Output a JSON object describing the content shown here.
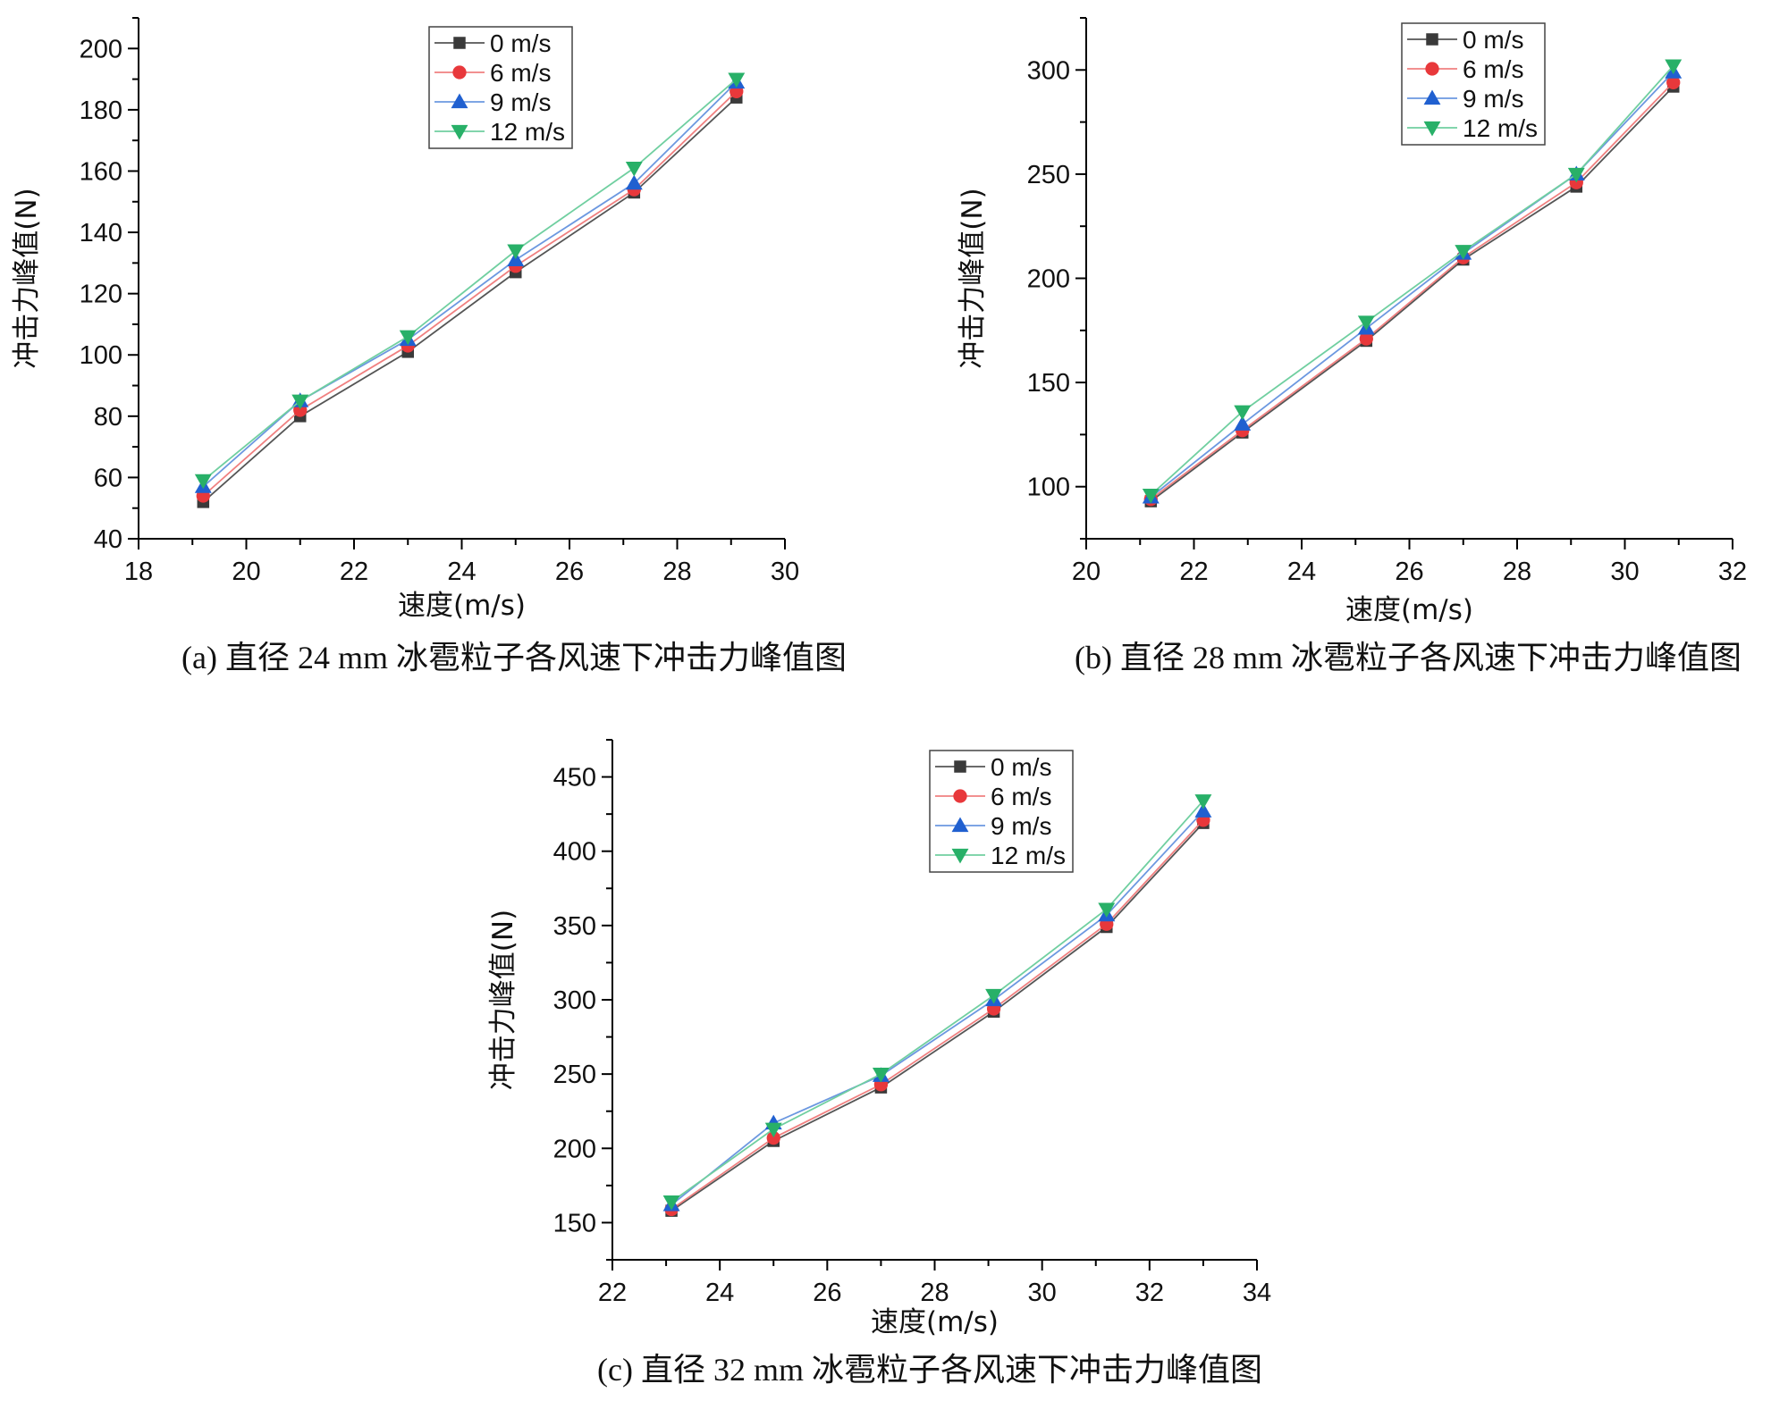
{
  "colors": {
    "0 m/s": "#3a3a3a",
    "6 m/s": "#e8383b",
    "9 m/s": "#2060d0",
    "12 m/s": "#28b068",
    "line_0 m/s": "#555555",
    "line_6 m/s": "#f08080",
    "line_9 m/s": "#6c98e0",
    "line_12 m/s": "#70cfa0"
  },
  "chart_data": [
    {
      "type": "line",
      "caption": "(a)  直径 24 mm 冰雹粒子各风速下冲击力峰值图",
      "xlabel": "速度(m/s)",
      "ylabel": "冲击力峰值(N)",
      "xlim": [
        18,
        30
      ],
      "ylim": [
        40,
        210
      ],
      "xticks": [
        18,
        20,
        22,
        24,
        26,
        28,
        30
      ],
      "yticks": [
        40,
        60,
        80,
        100,
        120,
        140,
        160,
        180,
        200
      ],
      "legend_position": "top-center",
      "x": [
        19.2,
        21.0,
        23.0,
        25.0,
        27.2,
        29.1
      ],
      "series": [
        {
          "name": "0 m/s",
          "marker": "square",
          "values": [
            52,
            80,
            101,
            127,
            153,
            184
          ]
        },
        {
          "name": "6 m/s",
          "marker": "circle",
          "values": [
            54,
            82,
            103,
            129,
            154,
            186
          ]
        },
        {
          "name": "9 m/s",
          "marker": "triangle-up",
          "values": [
            57,
            85,
            105,
            131,
            156,
            189
          ]
        },
        {
          "name": "12 m/s",
          "marker": "triangle-down",
          "values": [
            59,
            85,
            106,
            134,
            161,
            190
          ]
        }
      ]
    },
    {
      "type": "line",
      "caption": "(b)  直径 28 mm 冰雹粒子各风速下冲击力峰值图",
      "xlabel": "速度(m/s)",
      "ylabel": "冲击力峰值(N)",
      "xlim": [
        20,
        32
      ],
      "ylim": [
        75,
        325
      ],
      "xticks": [
        20,
        22,
        24,
        26,
        28,
        30,
        32
      ],
      "yticks": [
        100,
        150,
        200,
        250,
        300
      ],
      "legend_position": "top-center",
      "x": [
        21.2,
        22.9,
        25.2,
        27.0,
        29.1,
        30.9
      ],
      "series": [
        {
          "name": "0 m/s",
          "marker": "square",
          "values": [
            93,
            126,
            170,
            209,
            244,
            292
          ]
        },
        {
          "name": "6 m/s",
          "marker": "circle",
          "values": [
            94,
            127,
            171,
            210,
            246,
            294
          ]
        },
        {
          "name": "9 m/s",
          "marker": "triangle-up",
          "values": [
            95,
            130,
            176,
            212,
            250,
            299
          ]
        },
        {
          "name": "12 m/s",
          "marker": "triangle-down",
          "values": [
            96,
            136,
            179,
            213,
            250,
            302
          ]
        }
      ]
    },
    {
      "type": "line",
      "caption": "(c)  直径 32 mm 冰雹粒子各风速下冲击力峰值图",
      "xlabel": "速度(m/s)",
      "ylabel": "冲击力峰值(N)",
      "xlim": [
        22,
        34
      ],
      "ylim": [
        125,
        475
      ],
      "xticks": [
        22,
        24,
        26,
        28,
        30,
        32,
        34
      ],
      "yticks": [
        150,
        200,
        250,
        300,
        350,
        400,
        450
      ],
      "legend_position": "top-center",
      "x": [
        23.1,
        25.0,
        27.0,
        29.1,
        31.2,
        33.0
      ],
      "series": [
        {
          "name": "0 m/s",
          "marker": "square",
          "values": [
            158,
            205,
            241,
            292,
            349,
            419
          ]
        },
        {
          "name": "6 m/s",
          "marker": "circle",
          "values": [
            159,
            207,
            243,
            294,
            351,
            421
          ]
        },
        {
          "name": "9 m/s",
          "marker": "triangle-up",
          "values": [
            162,
            217,
            249,
            300,
            357,
            427
          ]
        },
        {
          "name": "12 m/s",
          "marker": "triangle-down",
          "values": [
            164,
            213,
            250,
            303,
            361,
            434
          ]
        }
      ]
    }
  ]
}
